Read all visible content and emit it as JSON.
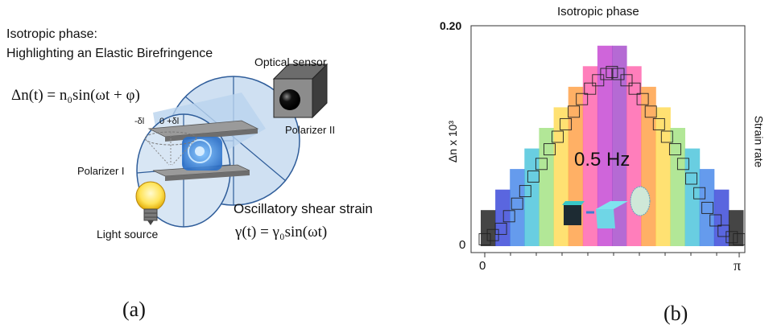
{
  "panel_a": {
    "title_line1": "Isotropic phase:",
    "title_line2": "Highlighting an Elastic Birefringence",
    "equation_n": "Δn(t) = n₀sin(ωt + φ)",
    "optical_sensor": "Optical sensor",
    "polarizer_2": "Polarizer II",
    "polarizer_1": "Polarizer I",
    "light_source": "Light source",
    "shear_label": "Oscillatory shear strain",
    "equation_gamma": "γ(t) = γ₀sin(ωt)",
    "delta_minus": "-δl",
    "delta_zero": "0 +δl",
    "caption": "(a)"
  },
  "panel_b": {
    "title": "Isotropic phase",
    "ylabel": "Δn x 10³",
    "right_label": "Strain rate",
    "frequency": "0.5 Hz",
    "y_tick_top": "0.20",
    "y_tick_zero": "0",
    "x_tick_zero": "0",
    "x_tick_pi": "π",
    "caption": "(b)"
  },
  "chart_data": {
    "type": "scatter",
    "title": "Isotropic phase",
    "xlabel": "",
    "ylabel": "Δn x 10³",
    "xlim": [
      0,
      3.1416
    ],
    "ylim": [
      0,
      0.2
    ],
    "x": [
      0.0,
      0.1,
      0.2,
      0.3,
      0.4,
      0.5,
      0.6,
      0.7,
      0.8,
      0.9,
      1.0,
      1.1,
      1.2,
      1.3,
      1.4,
      1.5,
      1.57,
      1.65,
      1.75,
      1.85,
      1.95,
      2.05,
      2.15,
      2.25,
      2.35,
      2.45,
      2.55,
      2.65,
      2.75,
      2.85,
      2.95,
      3.05,
      3.14
    ],
    "y": [
      0.002,
      0.006,
      0.012,
      0.024,
      0.036,
      0.048,
      0.062,
      0.074,
      0.088,
      0.1,
      0.112,
      0.124,
      0.136,
      0.146,
      0.154,
      0.16,
      0.162,
      0.16,
      0.154,
      0.146,
      0.136,
      0.124,
      0.112,
      0.1,
      0.088,
      0.074,
      0.06,
      0.046,
      0.032,
      0.02,
      0.01,
      0.004,
      0.002
    ],
    "grid": false
  }
}
